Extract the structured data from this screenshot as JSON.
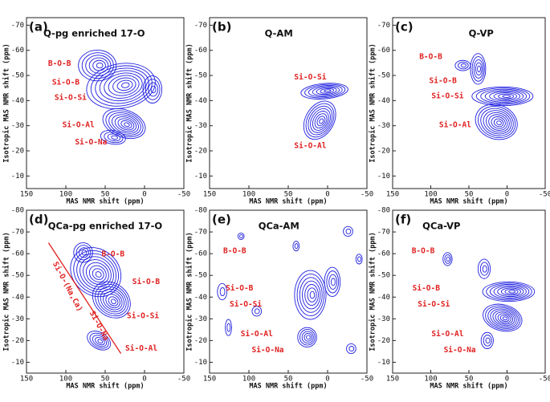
{
  "chart_data": [
    {
      "type": "contour",
      "panel": "(a)",
      "title": "Q-pg enriched 17-O",
      "xlabel": "MAS NMR shift (ppm)",
      "ylabel": "Isotropic MAS NMR shift (ppm)",
      "xlim": [
        150,
        -50
      ],
      "ylim": [
        -5,
        -73
      ],
      "xticks": [
        150,
        100,
        50,
        0,
        -50
      ],
      "yticks": [
        -10,
        -20,
        -30,
        -40,
        -50,
        -60,
        -70
      ],
      "color": "#1f1fe0",
      "annotations": [
        "B-O-B",
        "Si-O-B",
        "Si-O-Si",
        "Si-O-Al",
        "Si-O-Na"
      ]
    },
    {
      "type": "contour",
      "panel": "(b)",
      "title": "Q-AM",
      "xlabel": "MAS NMR shift (ppm)",
      "ylabel": "Isotropic MAS NMR shift (ppm)",
      "xlim": [
        150,
        -50
      ],
      "ylim": [
        -5,
        -73
      ],
      "xticks": [
        150,
        100,
        50,
        0,
        -50
      ],
      "yticks": [
        -10,
        -20,
        -30,
        -40,
        -50,
        -60,
        -70
      ],
      "color": "#1f1fe0",
      "annotations": [
        "Si-O-Si",
        "Si-O-Al"
      ]
    },
    {
      "type": "contour",
      "panel": "(c)",
      "title": "Q-VP",
      "xlabel": "MAS NMR shift (ppm)",
      "ylabel": "Isotropic MAS NMR shift (ppm)",
      "xlim": [
        150,
        -50
      ],
      "ylim": [
        -5,
        -73
      ],
      "xticks": [
        150,
        100,
        50,
        0,
        -50
      ],
      "yticks": [
        -10,
        -20,
        -30,
        -40,
        -50,
        -60,
        -70
      ],
      "color": "#1f1fe0",
      "annotations": [
        "B-O-B",
        "Si-O-B",
        "Si-O-Si",
        "Si-O-Al"
      ]
    },
    {
      "type": "contour",
      "panel": "(d)",
      "title": "QCa-pg enriched 17-O",
      "xlabel": "MAS NMR shift (ppm)",
      "ylabel": "Isotropic MAS NMR shift (ppm)",
      "xlim": [
        150,
        -50
      ],
      "ylim": [
        -5,
        -80
      ],
      "xticks": [
        150,
        100,
        50,
        0,
        -50
      ],
      "yticks": [
        -10,
        -20,
        -30,
        -40,
        -50,
        -60,
        -70,
        -80
      ],
      "color": "#1f1fe0",
      "annotations": [
        "B-O-B",
        "Si-O-B",
        "Si-O-Si",
        "Si-O-Al",
        "Si-O-(Na,Ca)",
        "Si-O-Na"
      ]
    },
    {
      "type": "contour",
      "panel": "(e)",
      "title": "QCa-AM",
      "xlabel": "MAS NMR shift (ppm)",
      "ylabel": "Isotropic MAS NMR shift (ppm)",
      "xlim": [
        150,
        -50
      ],
      "ylim": [
        -5,
        -80
      ],
      "xticks": [
        150,
        100,
        50,
        0,
        -50
      ],
      "yticks": [
        -10,
        -20,
        -30,
        -40,
        -50,
        -60,
        -70,
        -80
      ],
      "color": "#1f1fe0",
      "annotations": [
        "B-O-B",
        "Si-O-B",
        "Si-O-Si",
        "Si-O-Al",
        "Si-O-Na"
      ]
    },
    {
      "type": "contour",
      "panel": "(f)",
      "title": "QCa-VP",
      "xlabel": "MAS NMR shift (ppm)",
      "ylabel": "Isotropic MAS NMR shift (ppm)",
      "xlim": [
        150,
        -50
      ],
      "ylim": [
        -5,
        -80
      ],
      "xticks": [
        150,
        100,
        50,
        0,
        -50
      ],
      "yticks": [
        -10,
        -20,
        -30,
        -40,
        -50,
        -60,
        -70,
        -80
      ],
      "color": "#1f1fe0",
      "annotations": [
        "B-O-B",
        "Si-O-B",
        "Si-O-Si",
        "Si-O-Al",
        "Si-O-Na"
      ]
    }
  ]
}
